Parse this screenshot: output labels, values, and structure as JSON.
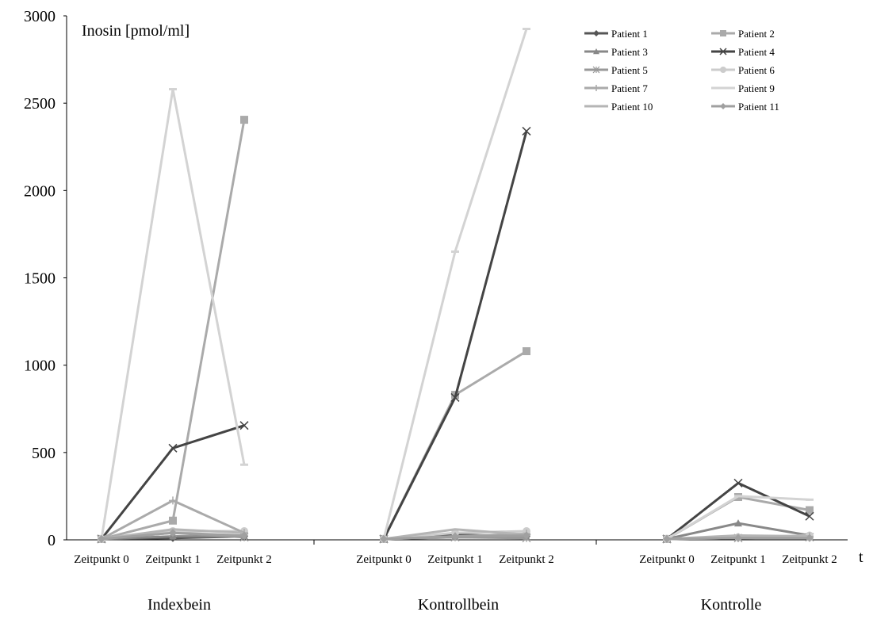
{
  "chart_data": {
    "type": "line",
    "ylabel": "Inosin [pmol/ml]",
    "xlabel": "t",
    "ylim": [
      0,
      3000
    ],
    "yticks": [
      0,
      500,
      1000,
      1500,
      2000,
      2500,
      3000
    ],
    "grid": false,
    "legend_position": "top-right",
    "groups": [
      "Indexbein",
      "Kontrollbein",
      "Kontrolle"
    ],
    "categories": [
      "Zeitpunkt 0",
      "Zeitpunkt 1",
      "Zeitpunkt 2"
    ],
    "series": [
      {
        "name": "Patient 1",
        "marker": "diamond",
        "color": "#555555",
        "values": [
          [
            5,
            10,
            20
          ],
          [
            5,
            30,
            20
          ],
          [
            5,
            10,
            15
          ]
        ]
      },
      {
        "name": "Patient 2",
        "marker": "square",
        "color": "#aaaaaa",
        "values": [
          [
            5,
            110,
            2405
          ],
          [
            5,
            830,
            1080
          ],
          [
            5,
            245,
            170
          ]
        ]
      },
      {
        "name": "Patient 3",
        "marker": "triangle",
        "color": "#888888",
        "values": [
          [
            5,
            20,
            20
          ],
          [
            5,
            15,
            15
          ],
          [
            5,
            95,
            25
          ]
        ]
      },
      {
        "name": "Patient 4",
        "marker": "x",
        "color": "#444444",
        "values": [
          [
            5,
            525,
            655
          ],
          [
            5,
            815,
            2340
          ],
          [
            5,
            325,
            135
          ]
        ]
      },
      {
        "name": "Patient 5",
        "marker": "star",
        "color": "#999999",
        "values": [
          [
            5,
            40,
            15
          ],
          [
            5,
            15,
            10
          ],
          [
            5,
            10,
            15
          ]
        ]
      },
      {
        "name": "Patient 6",
        "marker": "circle",
        "color": "#cccccc",
        "values": [
          [
            5,
            50,
            50
          ],
          [
            5,
            40,
            50
          ],
          [
            5,
            15,
            25
          ]
        ]
      },
      {
        "name": "Patient 7",
        "marker": "plus",
        "color": "#aaaaaa",
        "values": [
          [
            5,
            225,
            40
          ],
          [
            5,
            20,
            35
          ],
          [
            5,
            15,
            20
          ]
        ]
      },
      {
        "name": "Patient 9",
        "marker": "dash",
        "color": "#d3d3d3",
        "values": [
          [
            5,
            2580,
            430
          ],
          [
            5,
            1650,
            2925
          ],
          [
            5,
            250,
            230
          ]
        ]
      },
      {
        "name": "Patient 10",
        "marker": "none",
        "color": "#b5b5b5",
        "values": [
          [
            5,
            60,
            40
          ],
          [
            5,
            60,
            30
          ],
          [
            5,
            25,
            20
          ]
        ]
      },
      {
        "name": "Patient 11",
        "marker": "diamond",
        "color": "#a0a0a0",
        "values": [
          [
            5,
            40,
            25
          ],
          [
            5,
            20,
            25
          ],
          [
            5,
            10,
            10
          ]
        ]
      }
    ]
  }
}
